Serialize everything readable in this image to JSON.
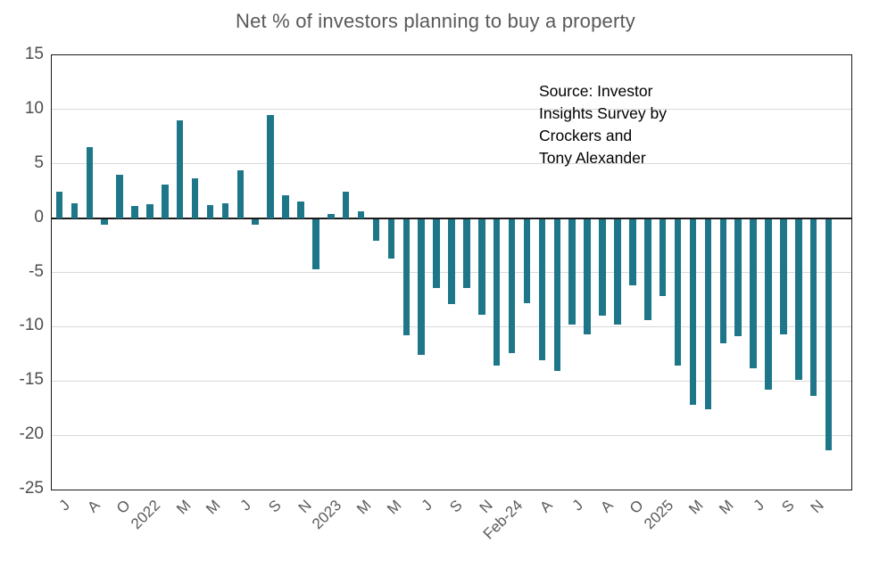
{
  "chart": {
    "title": "Net % of investors planning to buy a property",
    "source_lines": [
      "Source: Investor",
      "Insights Survey by",
      "Crockers and",
      "Tony Alexander"
    ]
  },
  "chart_data": {
    "type": "bar",
    "title": "Net % of investors planning to buy a property",
    "values": [
      2.4,
      1.4,
      6.5,
      -0.6,
      4.0,
      1.1,
      1.3,
      3.1,
      9.0,
      3.7,
      1.2,
      1.4,
      4.4,
      -0.6,
      9.5,
      2.1,
      1.5,
      -4.7,
      0.4,
      2.4,
      0.6,
      -2.1,
      -3.7,
      -10.8,
      -12.6,
      -6.4,
      -7.9,
      -6.4,
      -8.9,
      -13.6,
      -12.4,
      -7.8,
      -13.1,
      -14.1,
      -9.8,
      -10.7,
      -9.0,
      -9.8,
      -6.2,
      -9.4,
      -7.2,
      -13.6,
      -17.2,
      -17.6,
      -11.5,
      -10.9,
      -13.8,
      -15.8,
      -10.7,
      -14.9,
      -16.4,
      -21.4
    ],
    "x_tick_labels": [
      "J",
      "A",
      "O",
      "2022",
      "M",
      "M",
      "J",
      "S",
      "N",
      "2023",
      "M",
      "M",
      "J",
      "S",
      "N",
      "Feb-24",
      "A",
      "J",
      "A",
      "O",
      "2025",
      "M",
      "M",
      "J",
      "S",
      "N"
    ],
    "x_tick_every": 2,
    "y_tick_labels": [
      "15",
      "10",
      "5",
      "0",
      "-5",
      "-10",
      "-15",
      "-20",
      "-25"
    ],
    "ylim": [
      -25,
      15
    ],
    "ytick_step": 5,
    "grid": true,
    "legend": "none",
    "annotation": "Source: Investor Insights Survey by Crockers and Tony Alexander",
    "bar_color": "#1d7788"
  },
  "colors": {
    "bar": "#1d7788",
    "title_text": "#595959",
    "y_tick_text": "#4d4d4d",
    "x_tick_text": "#595959",
    "gridline": "#d9d9d9",
    "axis_line": "#1a1a1a",
    "source_text": "#000000",
    "background": "#ffffff"
  }
}
